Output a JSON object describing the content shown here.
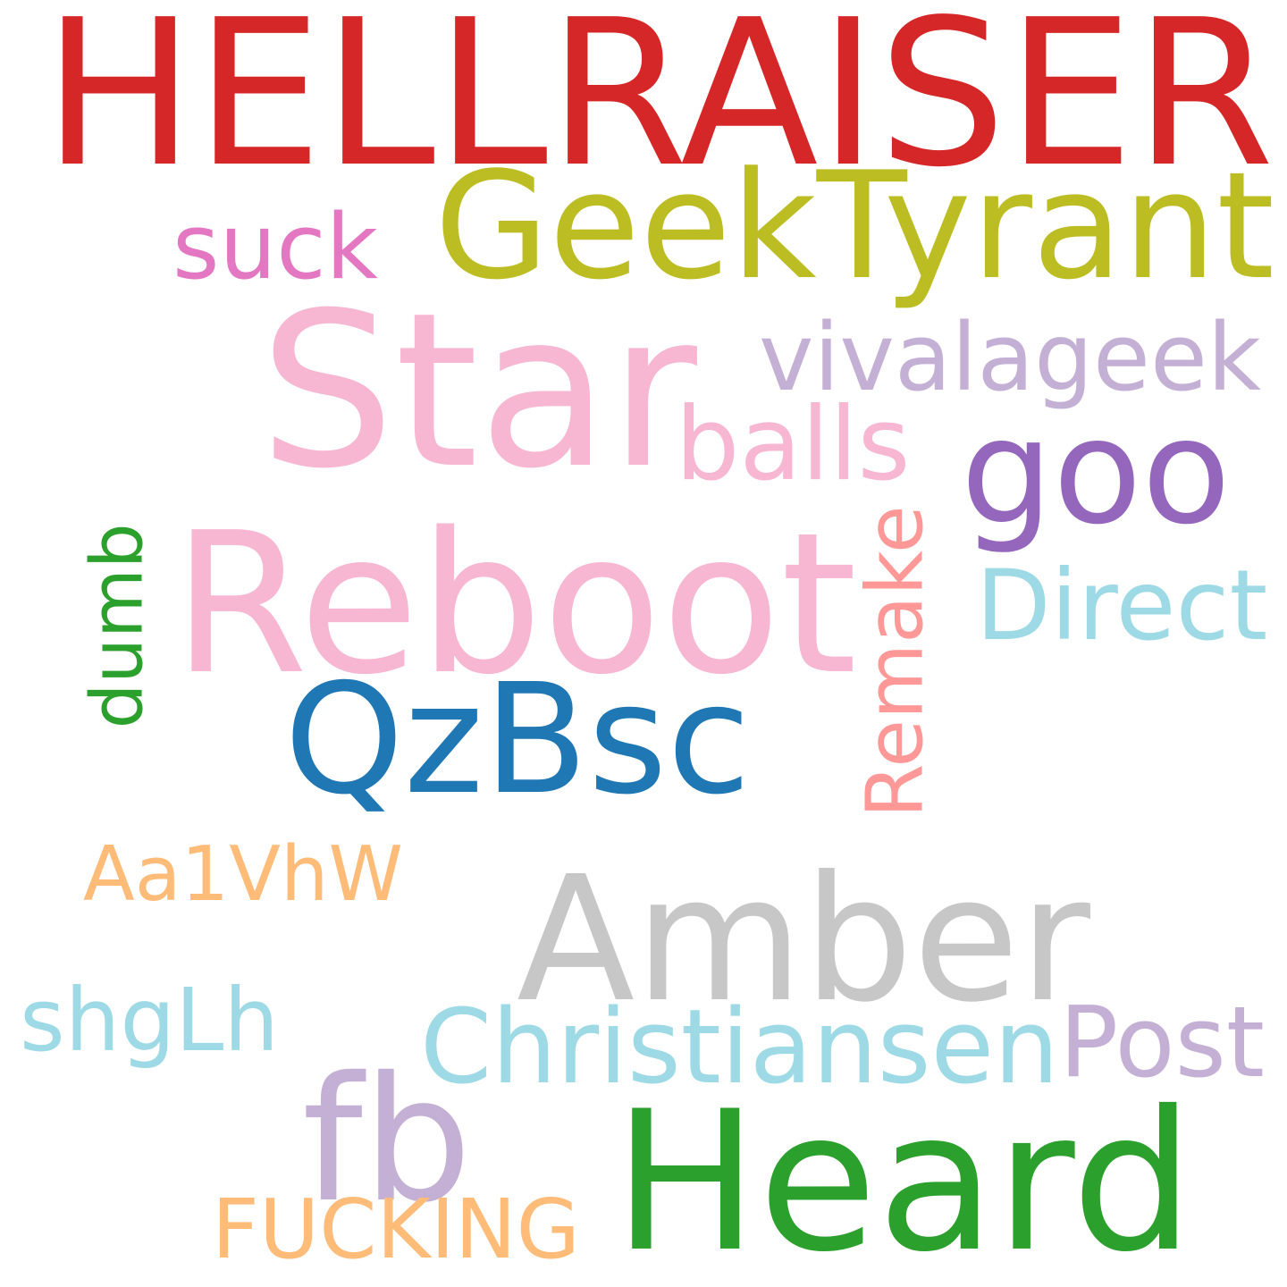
{
  "words": [
    {
      "key": "hellraiser",
      "text": "HELLRAISER",
      "color": "#d62728",
      "vertical": false
    },
    {
      "key": "geektyrant",
      "text": "GeekTyrant",
      "color": "#bcbd22",
      "vertical": false
    },
    {
      "key": "suck",
      "text": "suck",
      "color": "#e377c2",
      "vertical": false
    },
    {
      "key": "star",
      "text": "Star",
      "color": "#f7b6d2",
      "vertical": false
    },
    {
      "key": "vivalageek",
      "text": "vivalageek",
      "color": "#c5b0d5",
      "vertical": false
    },
    {
      "key": "balls",
      "text": "balls",
      "color": "#f7b6d2",
      "vertical": false
    },
    {
      "key": "goo",
      "text": "goo",
      "color": "#9467bd",
      "vertical": false
    },
    {
      "key": "reboot",
      "text": "Reboot",
      "color": "#f7b6d2",
      "vertical": false
    },
    {
      "key": "remake",
      "text": "Remake",
      "color": "#ff9896",
      "vertical": true
    },
    {
      "key": "direct",
      "text": "Direct",
      "color": "#9edae5",
      "vertical": false
    },
    {
      "key": "dumb",
      "text": "dumb",
      "color": "#2ca02c",
      "vertical": true
    },
    {
      "key": "qzbsc",
      "text": "QzBsc",
      "color": "#1f77b4",
      "vertical": false
    },
    {
      "key": "aa1vhw",
      "text": "Aa1VhW",
      "color": "#ffbb78",
      "vertical": false
    },
    {
      "key": "amber",
      "text": "Amber",
      "color": "#c7c7c7",
      "vertical": false
    },
    {
      "key": "shglh",
      "text": "shgLh",
      "color": "#9edae5",
      "vertical": false
    },
    {
      "key": "christiansen",
      "text": "Christiansen",
      "color": "#9edae5",
      "vertical": false
    },
    {
      "key": "post",
      "text": "Post",
      "color": "#c5b0d5",
      "vertical": false
    },
    {
      "key": "fb",
      "text": "fb",
      "color": "#c5b0d5",
      "vertical": false
    },
    {
      "key": "heard",
      "text": "Heard",
      "color": "#2ca02c",
      "vertical": false
    },
    {
      "key": "fucking",
      "text": "FUCKING",
      "color": "#ffbb78",
      "vertical": false
    }
  ]
}
